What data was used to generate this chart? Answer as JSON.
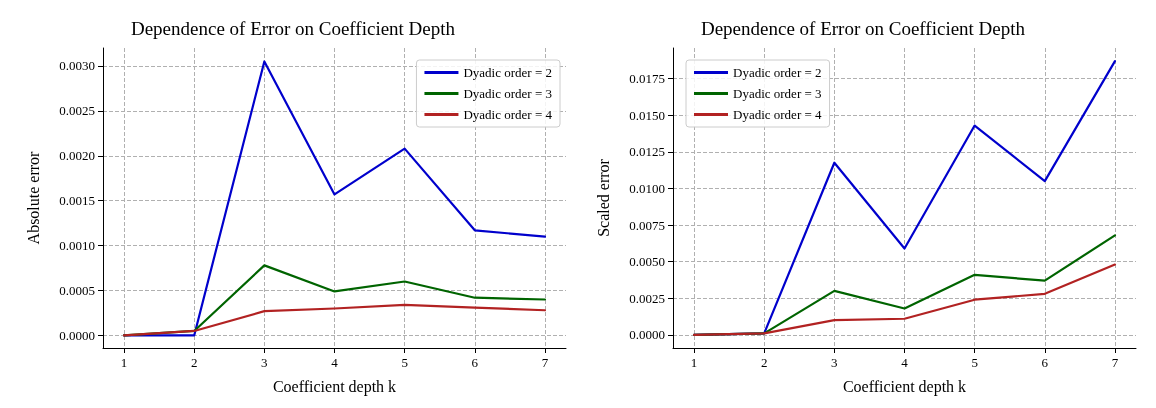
{
  "chart_data": [
    {
      "type": "line",
      "title": "Dependence of Error on Coefficient Depth",
      "xlabel": "Coefficient depth k",
      "ylabel": "Absolute error",
      "x": [
        1,
        2,
        3,
        4,
        5,
        6,
        7
      ],
      "series": [
        {
          "name": "Dyadic order = 2",
          "color": "#0000cc",
          "values": [
            0,
            0,
            0.00305,
            0.00157,
            0.00208,
            0.00117,
            0.0011
          ]
        },
        {
          "name": "Dyadic order = 3",
          "color": "#006400",
          "values": [
            0,
            5e-05,
            0.00078,
            0.00049,
            0.0006,
            0.00042,
            0.0004
          ]
        },
        {
          "name": "Dyadic order = 4",
          "color": "#b22222",
          "values": [
            0,
            5e-05,
            0.00027,
            0.0003,
            0.00034,
            0.00031,
            0.00028
          ]
        }
      ],
      "xlim": [
        0.7,
        7.3
      ],
      "xticks": [
        1,
        2,
        3,
        4,
        5,
        6,
        7
      ],
      "ylim": [
        -0.00014,
        0.0032
      ],
      "yticks": [
        {
          "value": 0,
          "label": "0.0000"
        },
        {
          "value": 0.0005,
          "label": "0.0005"
        },
        {
          "value": 0.001,
          "label": "0.0010"
        },
        {
          "value": 0.0015,
          "label": "0.0015"
        },
        {
          "value": 0.002,
          "label": "0.0020"
        },
        {
          "value": 0.0025,
          "label": "0.0025"
        },
        {
          "value": 0.003,
          "label": "0.0030"
        }
      ],
      "grid": true,
      "legend": "top right",
      "marker": "none",
      "line_style": "solid"
    },
    {
      "type": "line",
      "title": "Dependence of Error on Coefficient Depth",
      "xlabel": "Coefficient depth k",
      "ylabel": "Scaled error",
      "x": [
        1,
        2,
        3,
        4,
        5,
        6,
        7
      ],
      "series": [
        {
          "name": "Dyadic order = 2",
          "color": "#0000cc",
          "values": [
            0,
            0.0001,
            0.01176,
            0.0059,
            0.0143,
            0.0105,
            0.0187
          ]
        },
        {
          "name": "Dyadic order = 3",
          "color": "#006400",
          "values": [
            0,
            0.0001,
            0.003,
            0.0018,
            0.0041,
            0.0037,
            0.0068
          ]
        },
        {
          "name": "Dyadic order = 4",
          "color": "#b22222",
          "values": [
            0,
            0.0001,
            0.001,
            0.0011,
            0.0024,
            0.0028,
            0.0048
          ]
        }
      ],
      "xlim": [
        0.7,
        7.3
      ],
      "xticks": [
        1,
        2,
        3,
        4,
        5,
        6,
        7
      ],
      "ylim": [
        -0.0009,
        0.0196
      ],
      "yticks": [
        {
          "value": 0,
          "label": "0.0000"
        },
        {
          "value": 0.0025,
          "label": "0.0025"
        },
        {
          "value": 0.005,
          "label": "0.0050"
        },
        {
          "value": 0.0075,
          "label": "0.0075"
        },
        {
          "value": 0.01,
          "label": "0.0100"
        },
        {
          "value": 0.0125,
          "label": "0.0125"
        },
        {
          "value": 0.015,
          "label": "0.0150"
        },
        {
          "value": 0.0175,
          "label": "0.0175"
        }
      ],
      "grid": true,
      "legend": "top left",
      "marker": "none",
      "line_style": "solid"
    }
  ]
}
